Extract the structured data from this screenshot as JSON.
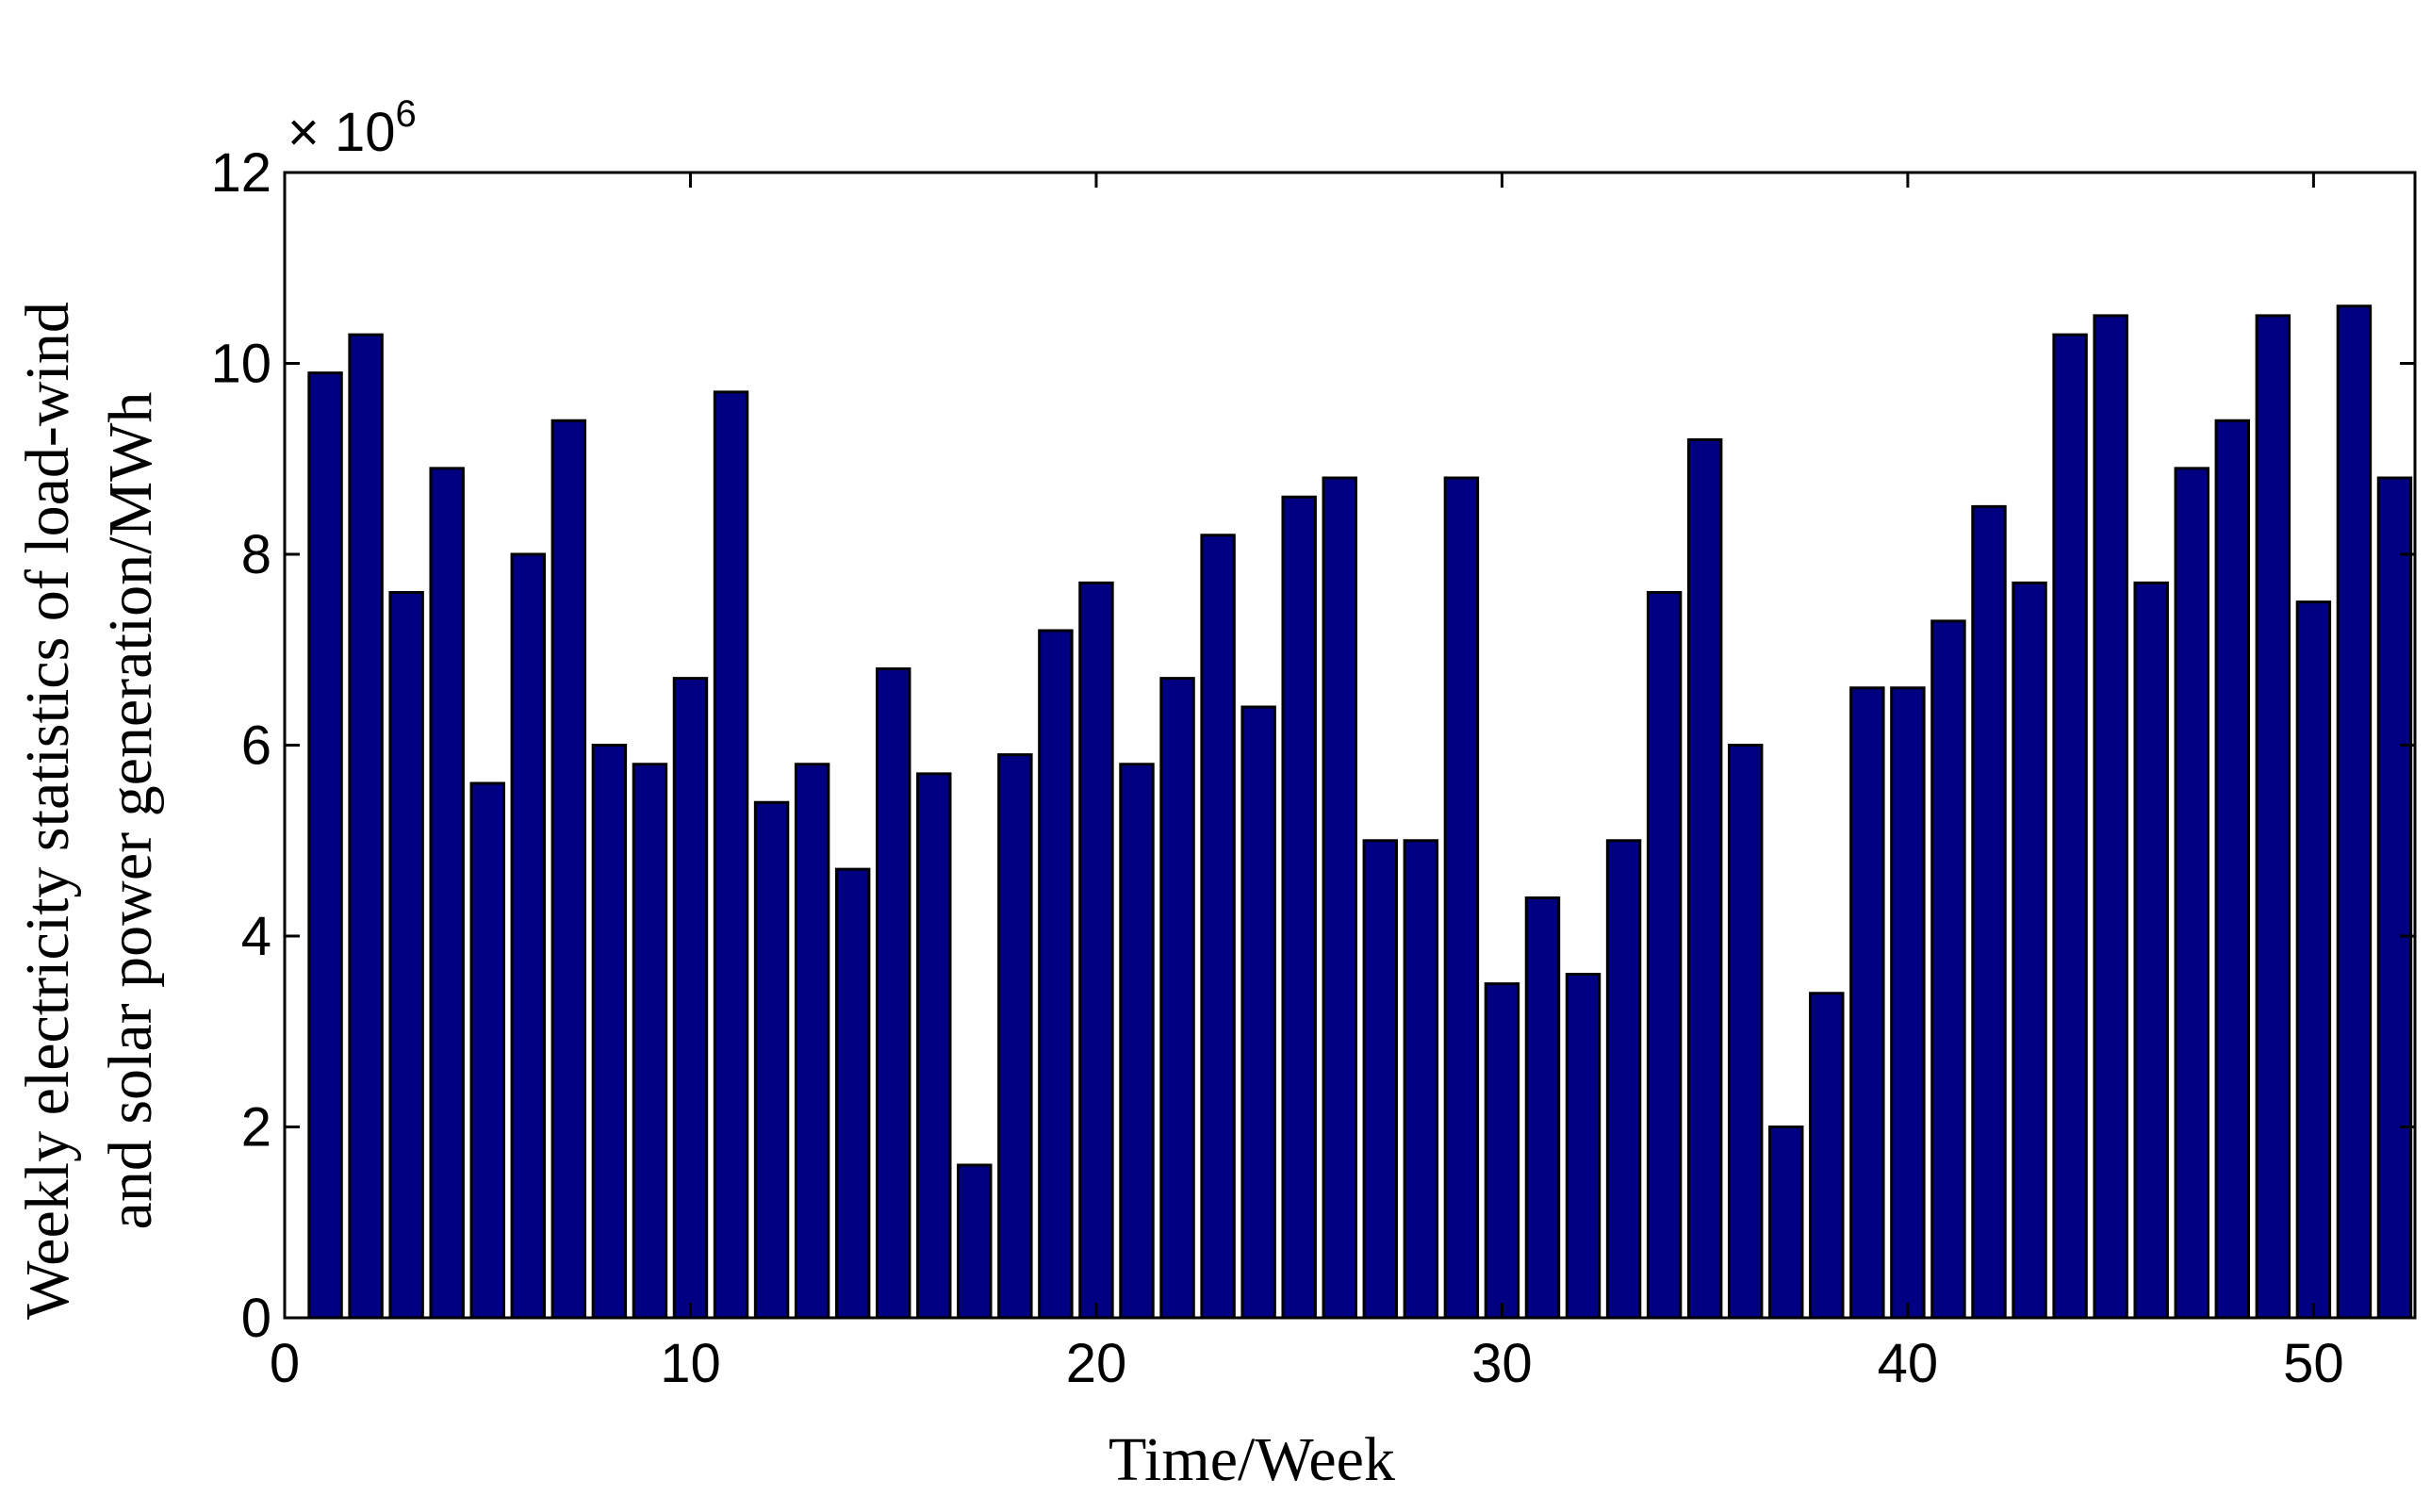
{
  "chart_data": {
    "type": "bar",
    "xlabel": "Time/Week",
    "ylabel_line1": "Weekly electricity statistics of load-wind",
    "ylabel_line2": "and solar power generation/MWh",
    "y_multiplier_base": "× 10",
    "y_multiplier_exp": "6",
    "xlim": [
      0,
      52.5
    ],
    "ylim": [
      0,
      12
    ],
    "x_ticks": [
      0,
      10,
      20,
      30,
      40,
      50
    ],
    "x_tick_labels": [
      "0",
      "10",
      "20",
      "30",
      "40",
      "50"
    ],
    "y_ticks": [
      0,
      2,
      4,
      6,
      8,
      10,
      12
    ],
    "y_tick_labels": [
      "0",
      "2",
      "4",
      "6",
      "8",
      "10",
      "12"
    ],
    "bar_color": "#000080",
    "x": [
      1,
      2,
      3,
      4,
      5,
      6,
      7,
      8,
      9,
      10,
      11,
      12,
      13,
      14,
      15,
      16,
      17,
      18,
      19,
      20,
      21,
      22,
      23,
      24,
      25,
      26,
      27,
      28,
      29,
      30,
      31,
      32,
      33,
      34,
      35,
      36,
      37,
      38,
      39,
      40,
      41,
      42,
      43,
      44,
      45,
      46,
      47,
      48,
      49,
      50,
      51,
      52
    ],
    "values": [
      9.9,
      10.3,
      7.6,
      8.9,
      5.6,
      8.0,
      9.4,
      6.0,
      5.8,
      6.7,
      9.7,
      5.4,
      5.8,
      4.7,
      6.8,
      5.7,
      1.6,
      5.9,
      7.2,
      7.7,
      5.8,
      6.7,
      8.2,
      6.4,
      8.6,
      8.8,
      5.0,
      5.0,
      8.8,
      3.5,
      4.4,
      3.6,
      5.0,
      7.6,
      9.2,
      6.0,
      2.0,
      3.4,
      6.6,
      6.6,
      7.3,
      8.5,
      7.7,
      10.3,
      10.5,
      7.7,
      8.9,
      9.4,
      10.5,
      7.5,
      10.6,
      8.8
    ]
  }
}
